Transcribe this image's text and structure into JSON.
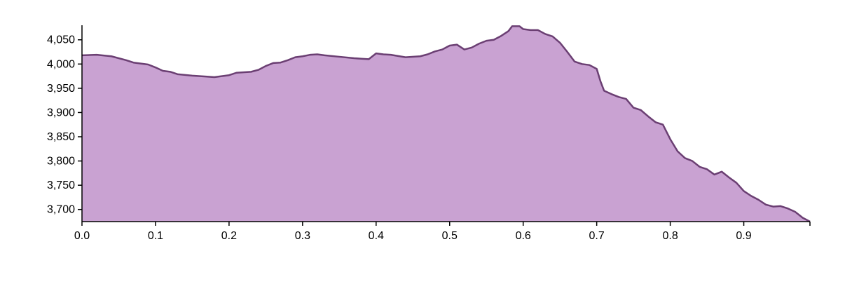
{
  "chart_data": {
    "type": "area",
    "title": "",
    "xlabel": "",
    "ylabel": "",
    "xlim": [
      0.0,
      0.99
    ],
    "ylim": [
      3675,
      4080
    ],
    "grid": false,
    "fill_color": "#c9a2d2",
    "line_color": "#6b3f73",
    "x_ticks": [
      {
        "value": 0.0,
        "label": "0.0"
      },
      {
        "value": 0.1,
        "label": "0.1"
      },
      {
        "value": 0.2,
        "label": "0.2"
      },
      {
        "value": 0.3,
        "label": "0.3"
      },
      {
        "value": 0.4,
        "label": "0.4"
      },
      {
        "value": 0.5,
        "label": "0.5"
      },
      {
        "value": 0.6,
        "label": "0.6"
      },
      {
        "value": 0.7,
        "label": "0.7"
      },
      {
        "value": 0.8,
        "label": "0.8"
      },
      {
        "value": 0.9,
        "label": "0.9"
      }
    ],
    "y_ticks": [
      {
        "value": 3700,
        "label": "3,700"
      },
      {
        "value": 3750,
        "label": "3,750"
      },
      {
        "value": 3800,
        "label": "3,800"
      },
      {
        "value": 3850,
        "label": "3,850"
      },
      {
        "value": 3900,
        "label": "3,900"
      },
      {
        "value": 3950,
        "label": "3,950"
      },
      {
        "value": 4000,
        "label": "4,000"
      },
      {
        "value": 4050,
        "label": "4,050"
      }
    ],
    "x": [
      0.0,
      0.02,
      0.04,
      0.06,
      0.07,
      0.09,
      0.1,
      0.11,
      0.12,
      0.13,
      0.15,
      0.17,
      0.18,
      0.2,
      0.21,
      0.23,
      0.24,
      0.25,
      0.26,
      0.27,
      0.28,
      0.29,
      0.3,
      0.31,
      0.32,
      0.33,
      0.35,
      0.37,
      0.38,
      0.39,
      0.4,
      0.41,
      0.42,
      0.44,
      0.46,
      0.47,
      0.48,
      0.49,
      0.5,
      0.51,
      0.52,
      0.53,
      0.54,
      0.55,
      0.56,
      0.57,
      0.58,
      0.585,
      0.595,
      0.6,
      0.61,
      0.62,
      0.63,
      0.64,
      0.65,
      0.66,
      0.67,
      0.68,
      0.69,
      0.7,
      0.705,
      0.71,
      0.72,
      0.73,
      0.74,
      0.75,
      0.76,
      0.77,
      0.78,
      0.79,
      0.8,
      0.81,
      0.82,
      0.83,
      0.84,
      0.85,
      0.86,
      0.87,
      0.88,
      0.89,
      0.9,
      0.91,
      0.92,
      0.93,
      0.94,
      0.95,
      0.96,
      0.97,
      0.98,
      0.99
    ],
    "series": [
      {
        "values": [
          4018,
          4019,
          4016,
          4008,
          4003,
          3999,
          3993,
          3986,
          3984,
          3979,
          3976,
          3974,
          3973,
          3977,
          3982,
          3984,
          3988,
          3996,
          4002,
          4003,
          4008,
          4014,
          4016,
          4019,
          4020,
          4018,
          4015,
          4012,
          4011,
          4010,
          4022,
          4020,
          4019,
          4014,
          4016,
          4020,
          4026,
          4030,
          4038,
          4040,
          4030,
          4034,
          4042,
          4048,
          4050,
          4058,
          4068,
          4078,
          4078,
          4072,
          4070,
          4070,
          4062,
          4057,
          4044,
          4025,
          4005,
          4000,
          3998,
          3990,
          3965,
          3945,
          3938,
          3932,
          3928,
          3910,
          3905,
          3892,
          3880,
          3875,
          3845,
          3820,
          3806,
          3800,
          3788,
          3783,
          3772,
          3778,
          3766,
          3755,
          3738,
          3728,
          3720,
          3710,
          3706,
          3707,
          3702,
          3695,
          3683,
          3675
        ]
      }
    ]
  }
}
